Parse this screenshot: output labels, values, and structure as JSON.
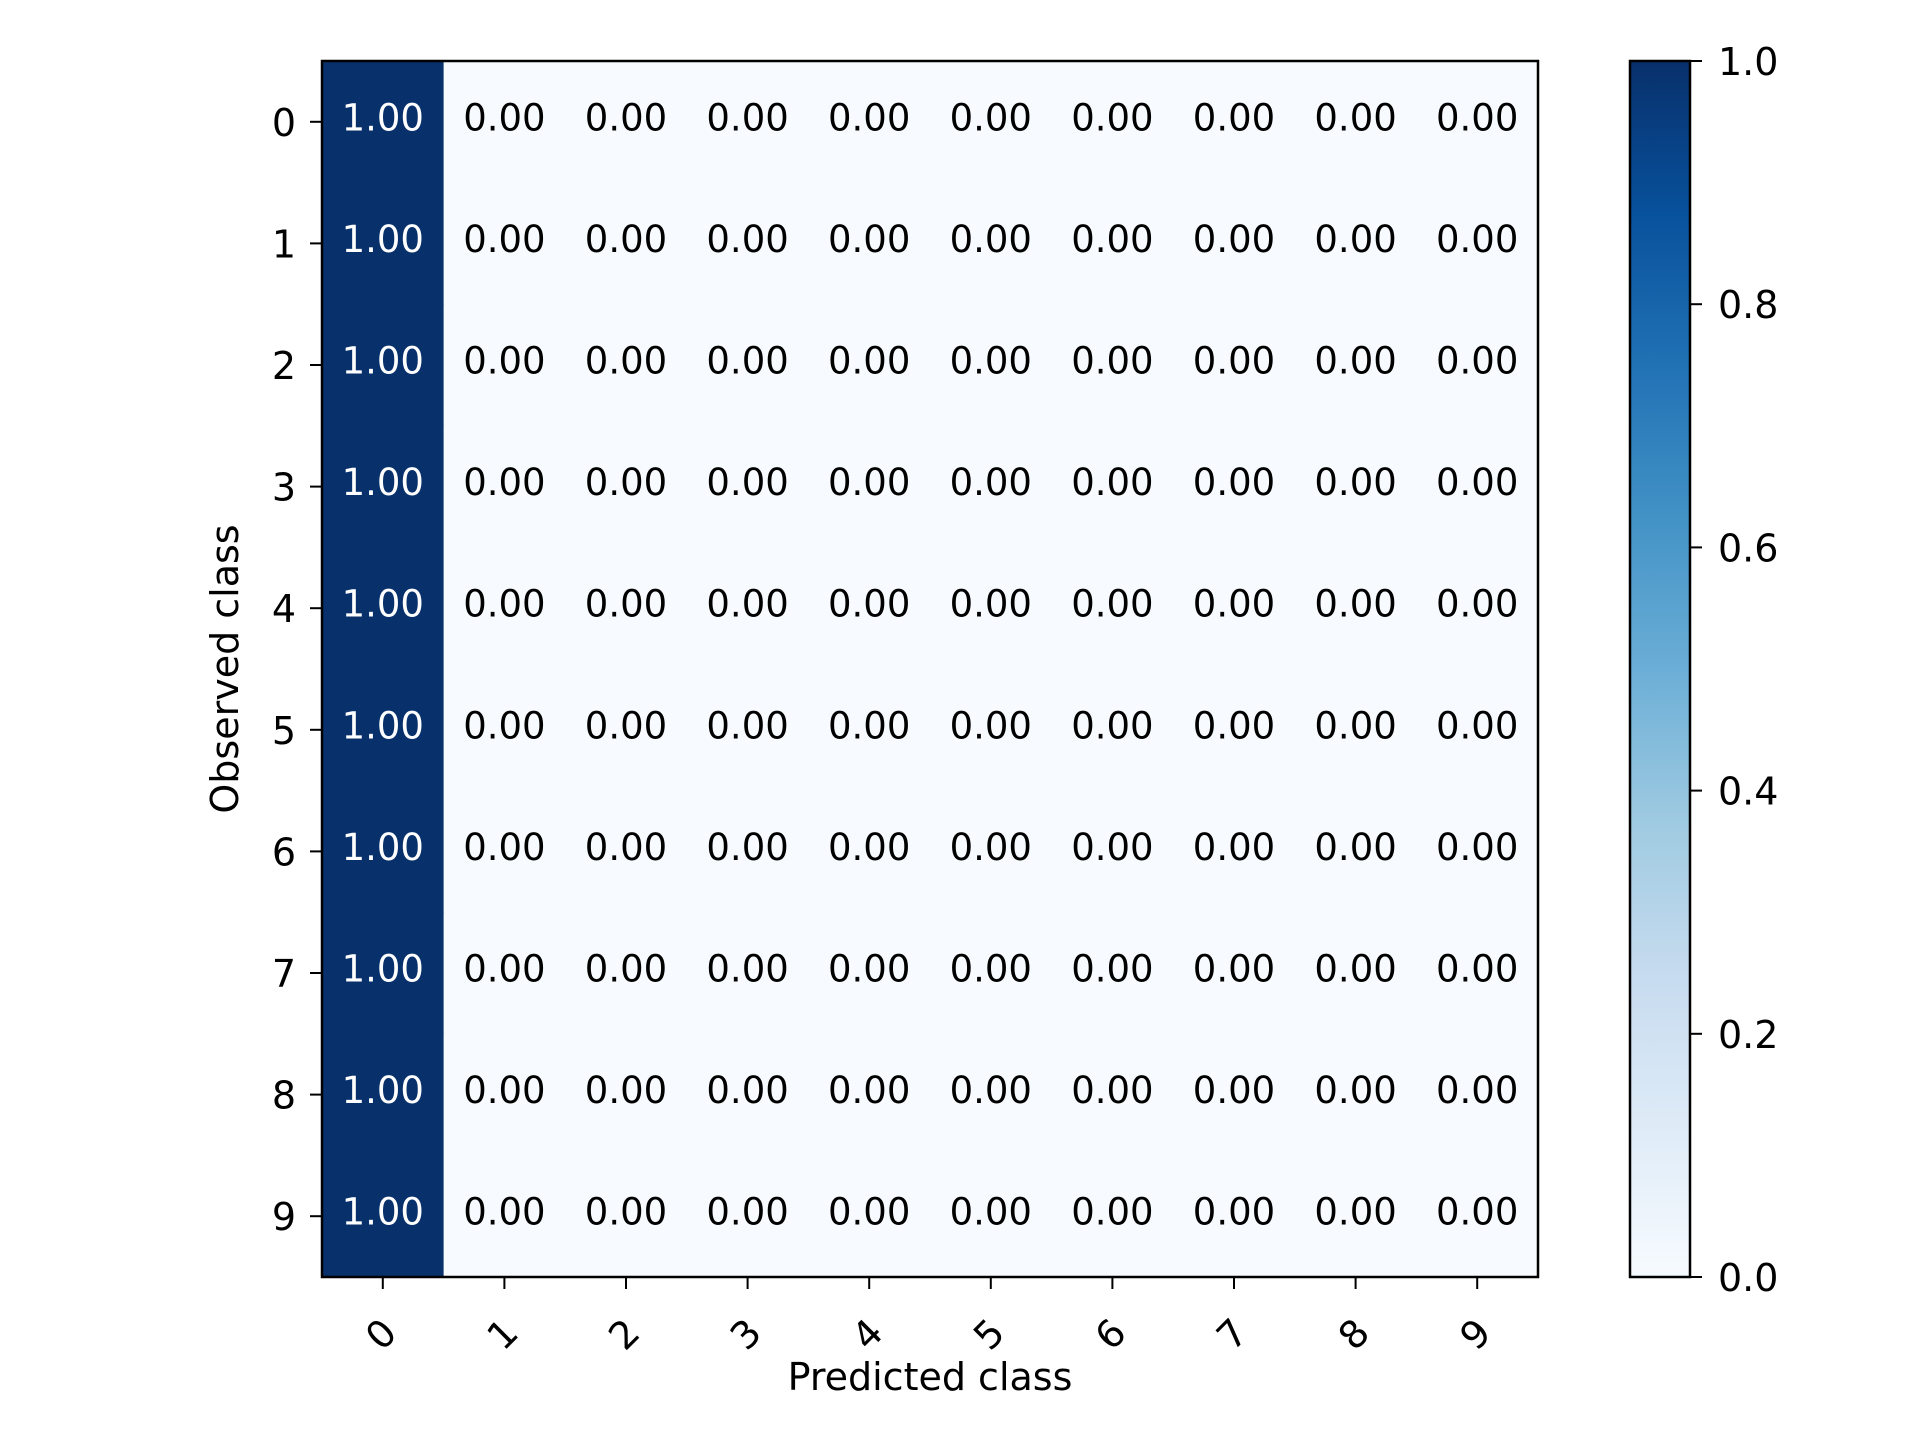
{
  "chart_data": {
    "type": "heatmap",
    "title": "",
    "xlabel": "Predicted class",
    "ylabel": "Observed class",
    "x_categories": [
      "0",
      "1",
      "2",
      "3",
      "4",
      "5",
      "6",
      "7",
      "8",
      "9"
    ],
    "y_categories": [
      "0",
      "1",
      "2",
      "3",
      "4",
      "5",
      "6",
      "7",
      "8",
      "9"
    ],
    "values": [
      [
        1.0,
        0.0,
        0.0,
        0.0,
        0.0,
        0.0,
        0.0,
        0.0,
        0.0,
        0.0
      ],
      [
        1.0,
        0.0,
        0.0,
        0.0,
        0.0,
        0.0,
        0.0,
        0.0,
        0.0,
        0.0
      ],
      [
        1.0,
        0.0,
        0.0,
        0.0,
        0.0,
        0.0,
        0.0,
        0.0,
        0.0,
        0.0
      ],
      [
        1.0,
        0.0,
        0.0,
        0.0,
        0.0,
        0.0,
        0.0,
        0.0,
        0.0,
        0.0
      ],
      [
        1.0,
        0.0,
        0.0,
        0.0,
        0.0,
        0.0,
        0.0,
        0.0,
        0.0,
        0.0
      ],
      [
        1.0,
        0.0,
        0.0,
        0.0,
        0.0,
        0.0,
        0.0,
        0.0,
        0.0,
        0.0
      ],
      [
        1.0,
        0.0,
        0.0,
        0.0,
        0.0,
        0.0,
        0.0,
        0.0,
        0.0,
        0.0
      ],
      [
        1.0,
        0.0,
        0.0,
        0.0,
        0.0,
        0.0,
        0.0,
        0.0,
        0.0,
        0.0
      ],
      [
        1.0,
        0.0,
        0.0,
        0.0,
        0.0,
        0.0,
        0.0,
        0.0,
        0.0,
        0.0
      ],
      [
        1.0,
        0.0,
        0.0,
        0.0,
        0.0,
        0.0,
        0.0,
        0.0,
        0.0,
        0.0
      ]
    ],
    "value_format_decimals": 2,
    "colorbar": {
      "range": [
        0.0,
        1.0
      ],
      "ticks": [
        "0.0",
        "0.2",
        "0.4",
        "0.6",
        "0.8",
        "1.0"
      ],
      "colormap": "Blues",
      "color_stops": [
        "#f7fbff",
        "#deebf7",
        "#c6dbef",
        "#9ecae1",
        "#6baed6",
        "#4292c6",
        "#2171b5",
        "#08519c",
        "#08306b"
      ],
      "placement": "right"
    },
    "x_tick_rotation_deg": 45,
    "grid": false
  }
}
